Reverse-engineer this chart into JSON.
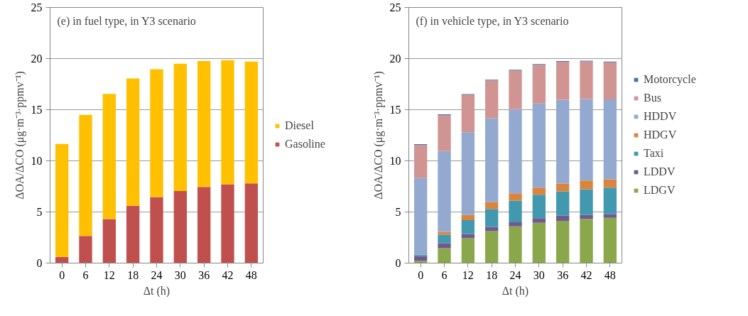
{
  "chart_data": [
    {
      "type": "bar",
      "stacked": true,
      "title": "(e) in fuel type, in Y3 scenario",
      "xlabel": "Δt (h)",
      "ylabel": "ΔOA/ΔCO (μg·m⁻³·ppmv⁻¹)",
      "categories": [
        "0",
        "6",
        "12",
        "18",
        "24",
        "30",
        "36",
        "42",
        "48"
      ],
      "series": [
        {
          "name": "Gasoline",
          "color": "#c0504d",
          "values": [
            0.6,
            2.65,
            4.3,
            5.6,
            6.45,
            7.05,
            7.45,
            7.7,
            7.8
          ]
        },
        {
          "name": "Diesel",
          "color": "#ffc000",
          "values": [
            11.05,
            11.85,
            12.25,
            12.45,
            12.5,
            12.45,
            12.3,
            12.15,
            11.9
          ]
        }
      ],
      "ylim": [
        0,
        25
      ],
      "yticks": [
        0,
        5,
        10,
        15,
        20,
        25
      ],
      "grid": "y",
      "legend": "right"
    },
    {
      "type": "bar",
      "stacked": true,
      "title": "(f) in vehicle type, in Y3 scenario",
      "xlabel": "Δt (h)",
      "ylabel": "ΔOA/ΔCO (μg·m⁻³·ppmv⁻¹)",
      "categories": [
        "0",
        "6",
        "12",
        "18",
        "24",
        "30",
        "36",
        "42",
        "48"
      ],
      "series": [
        {
          "name": "LDGV",
          "color": "#8aa84b",
          "values": [
            0.23,
            1.46,
            2.43,
            3.13,
            3.59,
            3.94,
            4.14,
            4.33,
            4.42
          ]
        },
        {
          "name": "LDDV",
          "color": "#71588f",
          "values": [
            0.47,
            0.48,
            0.42,
            0.41,
            0.41,
            0.46,
            0.49,
            0.39,
            0.37
          ]
        },
        {
          "name": "Taxi",
          "color": "#4198af",
          "values": [
            0.13,
            0.84,
            1.36,
            1.76,
            2.11,
            2.29,
            2.38,
            2.51,
            2.58
          ]
        },
        {
          "name": "HDGV",
          "color": "#db843d",
          "values": [
            null,
            0.28,
            0.49,
            0.65,
            0.72,
            0.69,
            0.77,
            0.84,
            0.83
          ]
        },
        {
          "name": "HDDV",
          "color": "#93a9cf",
          "values": [
            7.48,
            7.89,
            8.1,
            8.22,
            8.22,
            8.22,
            8.19,
            7.98,
            7.8
          ]
        },
        {
          "name": "Bus",
          "color": "#d09493",
          "values": [
            3.24,
            3.52,
            3.66,
            3.7,
            3.79,
            3.8,
            3.71,
            3.68,
            3.63
          ]
        },
        {
          "name": "Motorcycle",
          "color": "#4572a7",
          "values": [
            0.08,
            0.07,
            0.07,
            0.07,
            0.07,
            0.07,
            0.07,
            0.07,
            0.07
          ]
        }
      ],
      "ylim": [
        0,
        25
      ],
      "yticks": [
        0,
        5,
        10,
        15,
        20,
        25
      ],
      "grid": "y",
      "legend": "right"
    }
  ]
}
